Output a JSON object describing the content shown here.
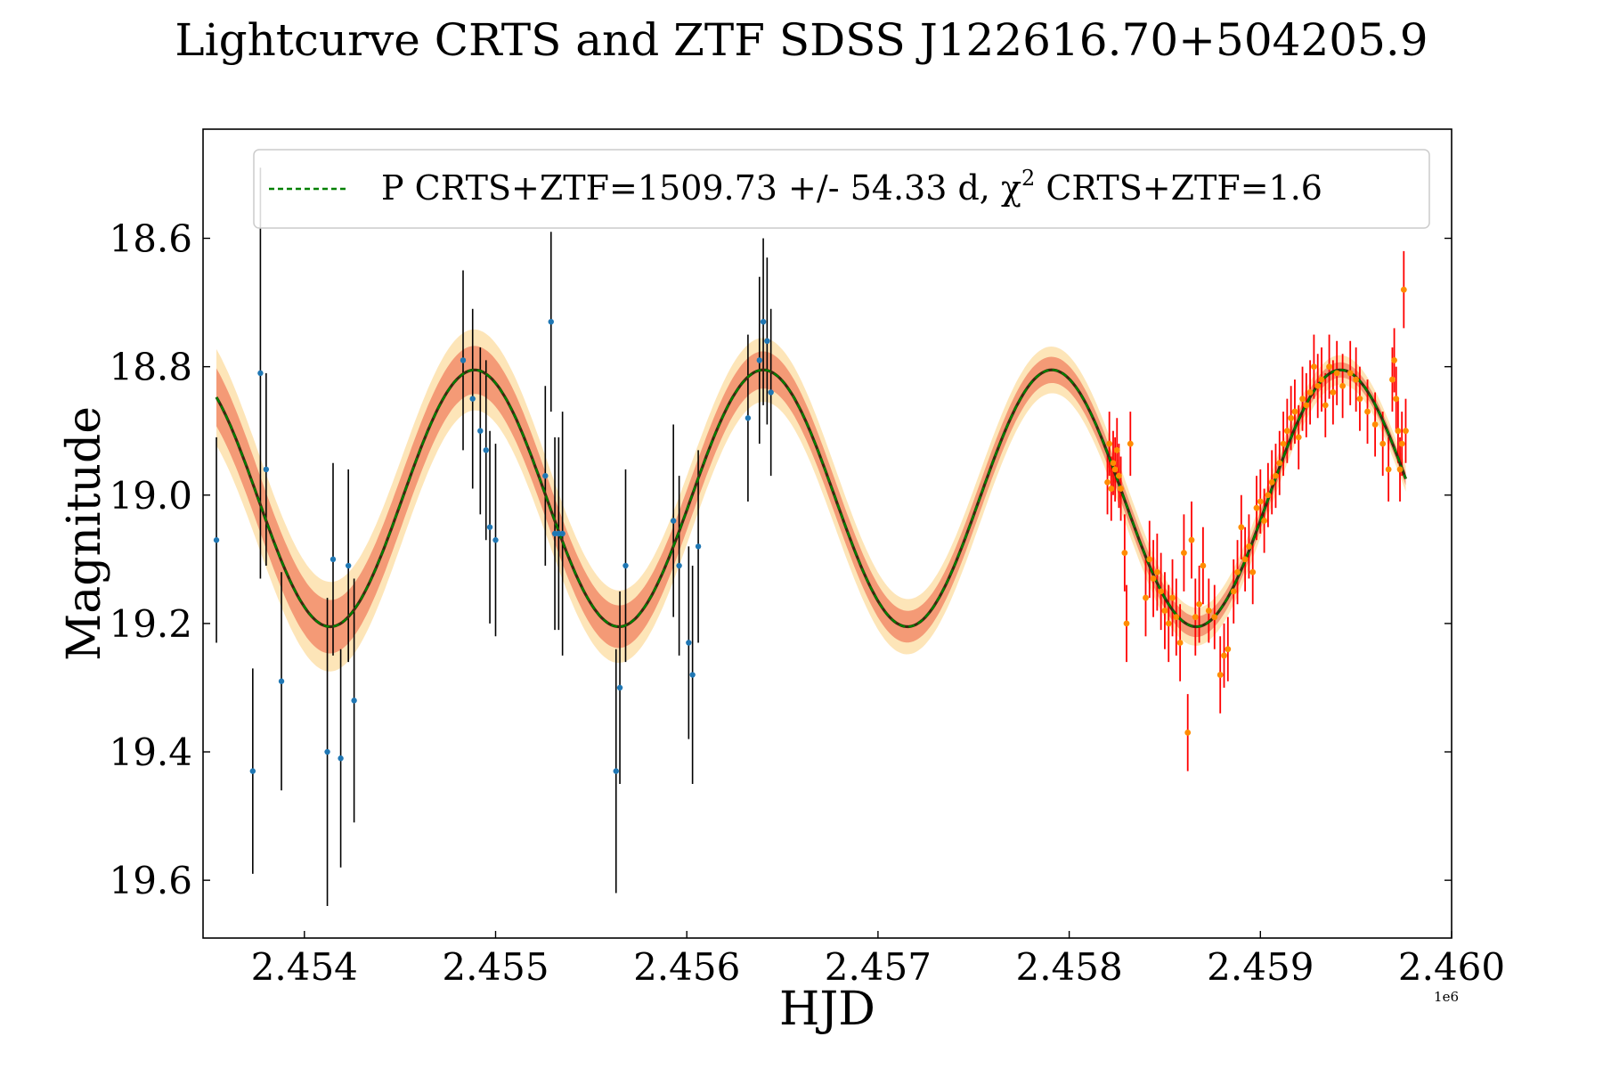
{
  "chart_data": {
    "type": "line",
    "title": "Lightcurve CRTS and ZTF SDSS J122616.70+504205.9",
    "xlabel": "HJD",
    "ylabel": "Magnitude",
    "x_offset_label": "1e6",
    "xlim": [
      2453470,
      2460000
    ],
    "ylim": [
      19.69,
      18.43
    ],
    "y_inverted": true,
    "xticks": [
      2454000,
      2455000,
      2456000,
      2457000,
      2458000,
      2459000,
      2460000
    ],
    "xtick_labels": [
      "2.454",
      "2.455",
      "2.456",
      "2.457",
      "2.458",
      "2.459",
      "2.460"
    ],
    "yticks": [
      18.6,
      18.8,
      19.0,
      19.2,
      19.4,
      19.6
    ],
    "ytick_labels": [
      "18.6",
      "18.8",
      "19.0",
      "19.2",
      "19.4",
      "19.6"
    ],
    "legend": {
      "label": "P CRTS+ZTF=1509.73 +/- 54.33 d, χ",
      "sup": "2",
      "label_tail": " CRTS+ZTF=1.6",
      "placement": "top-right"
    },
    "colors": {
      "fit": "#008000",
      "model": "#3a2a10",
      "band_inner": "#f08060",
      "band_outer": "#fde2b0",
      "crts_point": "#1f77b4",
      "crts_err": "#000000",
      "ztf_point": "#ff8c00",
      "ztf_err": "#ff0000"
    },
    "model": {
      "mean_mag": 19.005,
      "amplitude": 0.2,
      "period_days": 1509.73,
      "phase_ref_hjd": 2454890,
      "x_start": 2453540,
      "x_end": 2459760,
      "band_inner_start": 0.045,
      "band_inner_end": 0.01,
      "band_outer_start": 0.075,
      "band_outer_end": 0.02
    },
    "series": [
      {
        "name": "CRTS",
        "points": [
          [
            2453540,
            19.07,
            0.16
          ],
          [
            2453730,
            19.43,
            0.16
          ],
          [
            2453770,
            18.81,
            0.32
          ],
          [
            2453800,
            18.96,
            0.15
          ],
          [
            2453880,
            19.29,
            0.17
          ],
          [
            2454120,
            19.4,
            0.24
          ],
          [
            2454150,
            19.1,
            0.15
          ],
          [
            2454190,
            19.41,
            0.17
          ],
          [
            2454230,
            19.11,
            0.15
          ],
          [
            2454260,
            19.32,
            0.19
          ],
          [
            2454830,
            18.79,
            0.14
          ],
          [
            2454880,
            18.85,
            0.14
          ],
          [
            2454920,
            18.9,
            0.13
          ],
          [
            2454950,
            18.93,
            0.14
          ],
          [
            2454970,
            19.05,
            0.15
          ],
          [
            2455000,
            19.07,
            0.15
          ],
          [
            2455260,
            18.97,
            0.14
          ],
          [
            2455290,
            18.73,
            0.14
          ],
          [
            2455310,
            19.06,
            0.15
          ],
          [
            2455330,
            19.06,
            0.15
          ],
          [
            2455350,
            19.06,
            0.19
          ],
          [
            2455630,
            19.43,
            0.19
          ],
          [
            2455650,
            19.3,
            0.15
          ],
          [
            2455680,
            19.11,
            0.15
          ],
          [
            2455930,
            19.04,
            0.15
          ],
          [
            2455960,
            19.11,
            0.14
          ],
          [
            2456010,
            19.23,
            0.15
          ],
          [
            2456030,
            19.28,
            0.17
          ],
          [
            2456060,
            19.08,
            0.15
          ],
          [
            2456320,
            18.88,
            0.13
          ],
          [
            2456380,
            18.79,
            0.13
          ],
          [
            2456400,
            18.73,
            0.13
          ],
          [
            2456420,
            18.76,
            0.13
          ],
          [
            2456440,
            18.84,
            0.13
          ]
        ]
      },
      {
        "name": "ZTF",
        "points": [
          [
            2458200,
            18.98,
            0.05
          ],
          [
            2458210,
            18.92,
            0.05
          ],
          [
            2458220,
            18.99,
            0.05
          ],
          [
            2458230,
            18.95,
            0.05
          ],
          [
            2458240,
            18.96,
            0.05
          ],
          [
            2458250,
            18.93,
            0.05
          ],
          [
            2458260,
            18.97,
            0.05
          ],
          [
            2458270,
            18.99,
            0.05
          ],
          [
            2458290,
            19.09,
            0.06
          ],
          [
            2458300,
            19.2,
            0.06
          ],
          [
            2458320,
            18.92,
            0.05
          ],
          [
            2458400,
            19.16,
            0.06
          ],
          [
            2458420,
            19.1,
            0.06
          ],
          [
            2458440,
            19.13,
            0.06
          ],
          [
            2458460,
            19.12,
            0.06
          ],
          [
            2458480,
            19.15,
            0.06
          ],
          [
            2458500,
            19.18,
            0.06
          ],
          [
            2458520,
            19.2,
            0.06
          ],
          [
            2458540,
            19.16,
            0.06
          ],
          [
            2458560,
            19.19,
            0.06
          ],
          [
            2458580,
            19.23,
            0.06
          ],
          [
            2458600,
            19.09,
            0.06
          ],
          [
            2458620,
            19.37,
            0.06
          ],
          [
            2458640,
            19.07,
            0.06
          ],
          [
            2458660,
            19.19,
            0.06
          ],
          [
            2458680,
            19.17,
            0.06
          ],
          [
            2458700,
            19.11,
            0.06
          ],
          [
            2458730,
            19.18,
            0.05
          ],
          [
            2458760,
            19.19,
            0.05
          ],
          [
            2458790,
            19.28,
            0.06
          ],
          [
            2458810,
            19.25,
            0.05
          ],
          [
            2458830,
            19.24,
            0.05
          ],
          [
            2458860,
            19.15,
            0.05
          ],
          [
            2458880,
            19.12,
            0.05
          ],
          [
            2458900,
            19.05,
            0.05
          ],
          [
            2458920,
            19.1,
            0.05
          ],
          [
            2458940,
            19.08,
            0.05
          ],
          [
            2458960,
            19.12,
            0.05
          ],
          [
            2458980,
            19.02,
            0.05
          ],
          [
            2459000,
            19.01,
            0.05
          ],
          [
            2459020,
            19.04,
            0.05
          ],
          [
            2459040,
            19.0,
            0.05
          ],
          [
            2459060,
            18.98,
            0.05
          ],
          [
            2459080,
            18.97,
            0.05
          ],
          [
            2459100,
            18.95,
            0.05
          ],
          [
            2459120,
            18.92,
            0.05
          ],
          [
            2459140,
            18.9,
            0.05
          ],
          [
            2459160,
            18.88,
            0.05
          ],
          [
            2459180,
            18.87,
            0.05
          ],
          [
            2459200,
            18.91,
            0.05
          ],
          [
            2459220,
            18.85,
            0.05
          ],
          [
            2459240,
            18.86,
            0.05
          ],
          [
            2459260,
            18.84,
            0.05
          ],
          [
            2459280,
            18.8,
            0.05
          ],
          [
            2459300,
            18.83,
            0.05
          ],
          [
            2459320,
            18.82,
            0.05
          ],
          [
            2459340,
            18.86,
            0.05
          ],
          [
            2459360,
            18.8,
            0.05
          ],
          [
            2459380,
            18.84,
            0.05
          ],
          [
            2459400,
            18.81,
            0.05
          ],
          [
            2459430,
            18.83,
            0.05
          ],
          [
            2459470,
            18.81,
            0.05
          ],
          [
            2459500,
            18.82,
            0.05
          ],
          [
            2459520,
            18.85,
            0.05
          ],
          [
            2459560,
            18.87,
            0.05
          ],
          [
            2459600,
            18.89,
            0.05
          ],
          [
            2459640,
            18.92,
            0.05
          ],
          [
            2459670,
            18.96,
            0.05
          ],
          [
            2459690,
            18.82,
            0.05
          ],
          [
            2459700,
            18.79,
            0.05
          ],
          [
            2459710,
            18.85,
            0.05
          ],
          [
            2459720,
            18.9,
            0.05
          ],
          [
            2459730,
            18.96,
            0.05
          ],
          [
            2459740,
            18.92,
            0.05
          ],
          [
            2459750,
            18.68,
            0.06
          ],
          [
            2459760,
            18.9,
            0.05
          ]
        ]
      }
    ]
  }
}
